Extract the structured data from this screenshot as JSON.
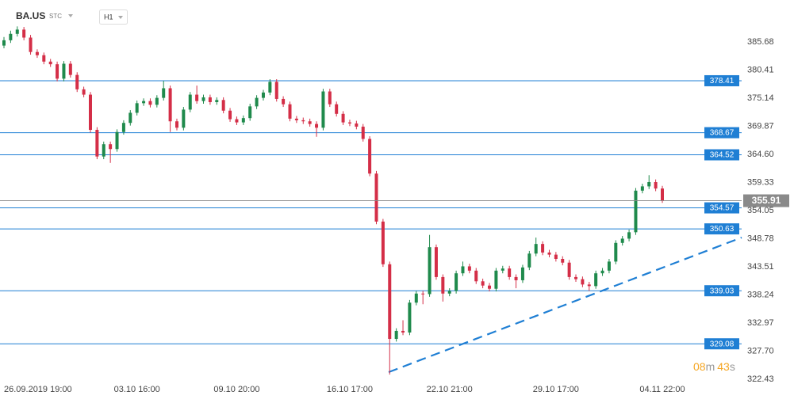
{
  "header": {
    "symbol": "BA.US",
    "mode": "STC",
    "interval": "H1"
  },
  "timer": {
    "minutes": "08",
    "minutes_unit": "m",
    "seconds": "43",
    "seconds_unit": "s"
  },
  "chart_data": {
    "type": "candlestick",
    "categories": [
      "26.09.2019 19:00",
      null,
      null,
      null,
      null,
      null,
      null,
      null,
      null,
      null,
      null,
      null,
      null,
      null,
      null,
      null,
      null,
      null,
      null,
      null,
      "03.10 16:00",
      null,
      null,
      null,
      null,
      null,
      null,
      null,
      null,
      null,
      null,
      null,
      null,
      null,
      null,
      "09.10 20:00",
      null,
      null,
      null,
      null,
      null,
      null,
      null,
      null,
      null,
      null,
      null,
      null,
      null,
      null,
      null,
      null,
      "16.10 17:00",
      null,
      null,
      null,
      null,
      null,
      null,
      null,
      null,
      null,
      null,
      null,
      null,
      null,
      null,
      "22.10 21:00",
      null,
      null,
      null,
      null,
      null,
      null,
      null,
      null,
      null,
      null,
      null,
      null,
      null,
      null,
      null,
      "29.10 17:00",
      null,
      null,
      null,
      null,
      null,
      null,
      null,
      null,
      null,
      null,
      null,
      null,
      null,
      null,
      null,
      "04.11 22:00"
    ],
    "open": [
      385.0,
      386.0,
      387.2,
      388.0,
      386.5,
      383.8,
      383.2,
      382.0,
      381.5,
      378.8,
      381.6,
      379.5,
      376.8,
      375.8,
      369.2,
      364.2,
      366.5,
      365.6,
      368.8,
      370.5,
      372.4,
      374.2,
      374.6,
      373.9,
      375.2,
      377.0,
      370.8,
      369.6,
      373.0,
      375.8,
      374.6,
      375.3,
      374.4,
      374.8,
      372.8,
      371.2,
      370.6,
      371.4,
      373.6,
      375.2,
      376.2,
      378.2,
      375.0,
      374.0,
      371.3,
      371.0,
      370.8,
      370.3,
      369.6,
      376.4,
      374.0,
      372.2,
      370.6,
      370.4,
      369.8,
      367.5,
      361.0,
      352.0,
      344.0,
      330.0,
      331.5,
      331.2,
      336.8,
      338.5,
      338.4,
      347.2,
      341.6,
      338.5,
      339.0,
      342.3,
      343.6,
      342.8,
      340.8,
      340.0,
      339.4,
      342.8,
      343.2,
      341.6,
      341.0,
      343.4,
      346.0,
      347.8,
      346.2,
      345.8,
      345.0,
      344.3,
      341.6,
      341.2,
      340.2,
      339.9,
      342.3,
      342.8,
      344.5,
      348.0,
      348.8,
      350.0,
      357.8,
      358.6,
      359.4,
      358.2
    ],
    "high": [
      386.6,
      387.8,
      388.6,
      388.5,
      387.0,
      384.3,
      383.7,
      382.5,
      382.0,
      382.1,
      382.1,
      380.0,
      377.3,
      376.3,
      369.7,
      367.0,
      367.0,
      369.3,
      371.0,
      372.9,
      374.7,
      375.1,
      375.1,
      375.7,
      378.4,
      377.5,
      371.3,
      373.5,
      376.3,
      377.5,
      375.8,
      375.8,
      375.3,
      375.3,
      373.3,
      371.7,
      371.9,
      374.1,
      375.7,
      376.7,
      378.7,
      378.7,
      375.5,
      374.5,
      371.8,
      371.5,
      371.3,
      370.8,
      376.9,
      376.9,
      374.5,
      372.7,
      371.1,
      370.9,
      370.3,
      368.0,
      361.5,
      352.5,
      344.5,
      332.0,
      333.5,
      337.3,
      339.0,
      339.0,
      349.5,
      347.7,
      342.1,
      339.5,
      342.8,
      344.5,
      344.1,
      343.3,
      341.3,
      340.5,
      343.3,
      343.7,
      343.7,
      342.1,
      343.9,
      346.5,
      349.0,
      348.3,
      346.7,
      346.3,
      345.5,
      344.8,
      342.1,
      341.7,
      340.7,
      342.8,
      343.3,
      345.0,
      348.5,
      349.3,
      350.5,
      358.3,
      359.1,
      360.7,
      359.9,
      358.7
    ],
    "low": [
      384.5,
      385.5,
      386.7,
      386.0,
      383.3,
      382.7,
      381.5,
      381.0,
      378.3,
      378.3,
      379.0,
      376.3,
      375.3,
      368.7,
      363.7,
      363.7,
      363.0,
      365.1,
      368.3,
      370.0,
      371.9,
      373.7,
      373.4,
      373.4,
      374.7,
      368.8,
      369.1,
      369.1,
      372.5,
      374.1,
      374.1,
      373.9,
      373.9,
      372.3,
      370.7,
      370.1,
      370.1,
      370.9,
      373.1,
      374.7,
      375.7,
      374.5,
      373.5,
      370.8,
      370.5,
      370.3,
      369.8,
      367.9,
      369.1,
      373.5,
      371.7,
      370.1,
      369.9,
      369.3,
      367.0,
      360.5,
      351.5,
      343.5,
      323.3,
      329.5,
      330.7,
      330.7,
      336.3,
      336.5,
      337.9,
      341.1,
      337.0,
      338.0,
      338.5,
      341.8,
      342.3,
      340.3,
      339.5,
      338.9,
      338.9,
      342.3,
      341.1,
      339.5,
      340.5,
      342.9,
      345.5,
      345.7,
      345.3,
      344.5,
      343.8,
      341.1,
      340.7,
      339.7,
      339.0,
      339.4,
      341.8,
      342.3,
      344.0,
      347.5,
      348.3,
      349.5,
      357.3,
      358.1,
      357.7,
      355.5
    ],
    "close": [
      386.0,
      387.2,
      388.0,
      386.5,
      383.8,
      383.2,
      382.0,
      381.5,
      378.8,
      381.6,
      379.5,
      376.8,
      375.8,
      369.2,
      364.2,
      366.5,
      365.6,
      368.8,
      370.5,
      372.4,
      374.2,
      374.6,
      373.9,
      375.2,
      377.0,
      370.8,
      369.6,
      373.0,
      375.8,
      374.6,
      375.3,
      374.4,
      374.8,
      372.8,
      371.2,
      370.6,
      371.4,
      373.6,
      375.2,
      376.2,
      378.2,
      375.0,
      374.0,
      371.3,
      371.0,
      370.8,
      370.3,
      369.6,
      376.4,
      374.0,
      372.2,
      370.6,
      370.4,
      369.8,
      367.5,
      361.0,
      352.0,
      344.0,
      330.0,
      331.5,
      331.2,
      336.8,
      338.5,
      338.4,
      347.2,
      341.6,
      338.5,
      339.0,
      342.3,
      343.6,
      342.8,
      340.8,
      340.0,
      339.4,
      342.8,
      343.2,
      341.6,
      341.0,
      343.4,
      346.0,
      347.8,
      346.2,
      345.8,
      345.0,
      344.3,
      341.6,
      341.2,
      340.2,
      339.9,
      342.3,
      342.8,
      344.5,
      348.0,
      348.8,
      350.0,
      357.8,
      358.6,
      359.4,
      358.2,
      355.91
    ],
    "up_color": "#1f8a4c",
    "down_color": "#d42e47",
    "levels": [
      378.41,
      368.67,
      364.52,
      354.57,
      350.63,
      339.03,
      329.08
    ],
    "level_color": "#1f7fd4",
    "last_price_color": "#8a8a8a",
    "ylim": [
      321.84,
      393.55
    ],
    "yticks": [
      385.68,
      380.41,
      375.14,
      369.87,
      {
        "value": 364.6,
        "label": "364.60"
      },
      359.33,
      354.05,
      348.78,
      343.51,
      338.24,
      332.97,
      {
        "value": 327.7,
        "label": "327.70"
      },
      322.43
    ]
  }
}
